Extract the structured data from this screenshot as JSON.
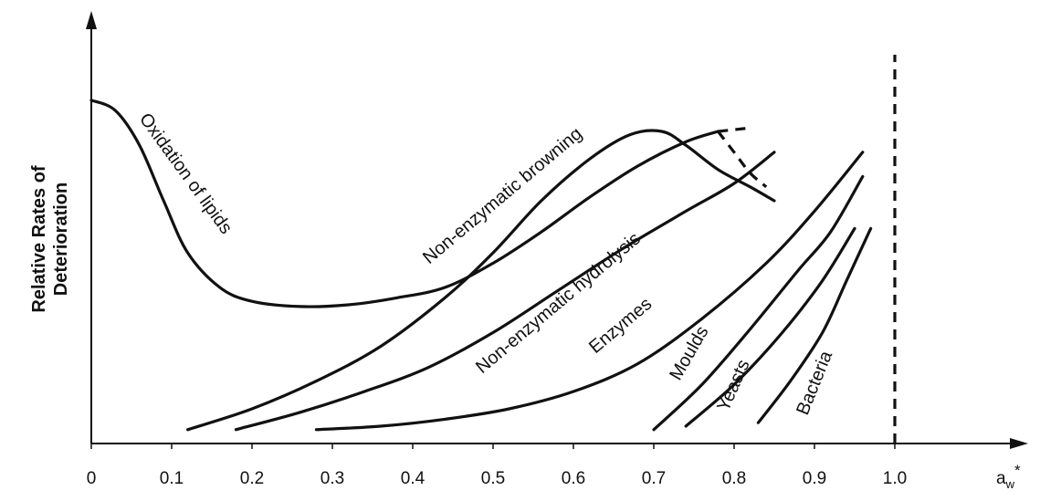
{
  "chart_data": {
    "type": "line",
    "xlabel": "a",
    "xlabel_sub": "w",
    "xlabel_sup": "*",
    "ylabel_line1": "Relative Rates of",
    "ylabel_line2": "Deterioration",
    "xlim": [
      0,
      1.1
    ],
    "ylim": [
      0,
      1.0
    ],
    "ticks": [
      "0",
      "0.1",
      "0.2",
      "0.3",
      "0.4",
      "0.5",
      "0.6",
      "0.7",
      "0.8",
      "0.9",
      "1.0"
    ],
    "reference_line": {
      "x": 1.0,
      "style": "dashed"
    },
    "series": [
      {
        "name": "Oxidation of lipids",
        "points": [
          [
            0,
            0.99
          ],
          [
            0.03,
            0.96
          ],
          [
            0.06,
            0.86
          ],
          [
            0.09,
            0.7
          ],
          [
            0.12,
            0.55
          ],
          [
            0.16,
            0.45
          ],
          [
            0.2,
            0.41
          ],
          [
            0.26,
            0.395
          ],
          [
            0.32,
            0.4
          ],
          [
            0.38,
            0.42
          ],
          [
            0.44,
            0.45
          ],
          [
            0.5,
            0.52
          ],
          [
            0.56,
            0.61
          ],
          [
            0.62,
            0.71
          ],
          [
            0.68,
            0.8
          ],
          [
            0.74,
            0.87
          ],
          [
            0.78,
            0.9
          ],
          [
            0.82,
            0.91
          ]
        ],
        "dashed_from": 0.78
      },
      {
        "name": "Non-enzymatic browning",
        "points": [
          [
            0.12,
            0.04
          ],
          [
            0.2,
            0.1
          ],
          [
            0.28,
            0.18
          ],
          [
            0.36,
            0.28
          ],
          [
            0.44,
            0.42
          ],
          [
            0.5,
            0.55
          ],
          [
            0.56,
            0.7
          ],
          [
            0.62,
            0.82
          ],
          [
            0.67,
            0.89
          ],
          [
            0.71,
            0.9
          ],
          [
            0.74,
            0.86
          ],
          [
            0.78,
            0.79
          ],
          [
            0.82,
            0.74
          ],
          [
            0.85,
            0.7
          ]
        ],
        "dashed_to": [
          [
            0.78,
            0.9
          ],
          [
            0.8,
            0.84
          ],
          [
            0.82,
            0.78
          ],
          [
            0.84,
            0.74
          ]
        ]
      },
      {
        "name": "Non-enzymatic hydrolysis",
        "points": [
          [
            0.18,
            0.04
          ],
          [
            0.26,
            0.09
          ],
          [
            0.34,
            0.15
          ],
          [
            0.42,
            0.22
          ],
          [
            0.5,
            0.32
          ],
          [
            0.58,
            0.44
          ],
          [
            0.66,
            0.56
          ],
          [
            0.74,
            0.67
          ],
          [
            0.8,
            0.75
          ],
          [
            0.85,
            0.84
          ]
        ]
      },
      {
        "name": "Enzymes",
        "points": [
          [
            0.28,
            0.04
          ],
          [
            0.36,
            0.05
          ],
          [
            0.44,
            0.07
          ],
          [
            0.52,
            0.1
          ],
          [
            0.6,
            0.15
          ],
          [
            0.68,
            0.23
          ],
          [
            0.76,
            0.36
          ],
          [
            0.84,
            0.52
          ],
          [
            0.9,
            0.67
          ],
          [
            0.96,
            0.84
          ]
        ]
      },
      {
        "name": "Moulds",
        "points": [
          [
            0.7,
            0.04
          ],
          [
            0.76,
            0.17
          ],
          [
            0.82,
            0.33
          ],
          [
            0.88,
            0.5
          ],
          [
            0.92,
            0.61
          ],
          [
            0.96,
            0.77
          ]
        ]
      },
      {
        "name": "Yeasts",
        "points": [
          [
            0.74,
            0.05
          ],
          [
            0.8,
            0.17
          ],
          [
            0.86,
            0.32
          ],
          [
            0.91,
            0.47
          ],
          [
            0.95,
            0.62
          ]
        ]
      },
      {
        "name": "Bacteria",
        "points": [
          [
            0.83,
            0.06
          ],
          [
            0.87,
            0.18
          ],
          [
            0.91,
            0.32
          ],
          [
            0.94,
            0.47
          ],
          [
            0.97,
            0.62
          ]
        ]
      }
    ]
  }
}
